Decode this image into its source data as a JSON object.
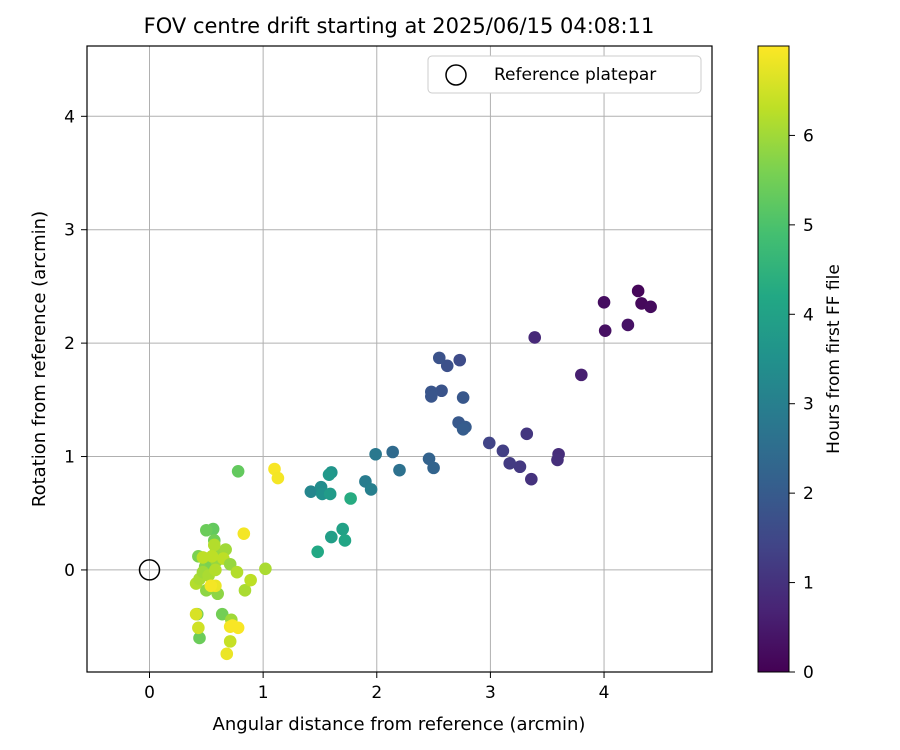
{
  "chart_data": {
    "type": "scatter",
    "title": "FOV centre drift starting at 2025/06/15 04:08:11",
    "xlabel": "Angular distance from reference (arcmin)",
    "ylabel": "Rotation from reference (arcmin)",
    "xlim": [
      -0.55,
      4.95
    ],
    "ylim": [
      -0.9,
      4.62
    ],
    "xticks": [
      0,
      1,
      2,
      3,
      4
    ],
    "yticks": [
      0,
      1,
      2,
      3,
      4
    ],
    "grid": true,
    "legend": {
      "placement": "top-right",
      "entries": [
        "Reference platepar"
      ]
    },
    "reference_point": {
      "x": 0,
      "y": 0
    },
    "colorbar": {
      "label": "Hours from first FF file",
      "range": [
        0,
        7
      ],
      "ticks": [
        0,
        1,
        2,
        3,
        4,
        5,
        6
      ],
      "colormap": "viridis"
    },
    "points": [
      {
        "x": 4.3,
        "y": 2.46,
        "h": 0.1
      },
      {
        "x": 4.33,
        "y": 2.35,
        "h": 0.15
      },
      {
        "x": 4.41,
        "y": 2.32,
        "h": 0.2
      },
      {
        "x": 4.0,
        "y": 2.36,
        "h": 0.25
      },
      {
        "x": 4.01,
        "y": 2.11,
        "h": 0.3
      },
      {
        "x": 4.21,
        "y": 2.16,
        "h": 0.35
      },
      {
        "x": 3.8,
        "y": 1.72,
        "h": 0.6
      },
      {
        "x": 3.39,
        "y": 2.05,
        "h": 0.8
      },
      {
        "x": 3.6,
        "y": 1.02,
        "h": 0.9
      },
      {
        "x": 3.59,
        "y": 0.97,
        "h": 0.95
      },
      {
        "x": 3.36,
        "y": 0.8,
        "h": 1.0
      },
      {
        "x": 3.32,
        "y": 1.2,
        "h": 1.1
      },
      {
        "x": 3.26,
        "y": 0.91,
        "h": 1.15
      },
      {
        "x": 3.17,
        "y": 0.94,
        "h": 1.2
      },
      {
        "x": 3.11,
        "y": 1.05,
        "h": 1.3
      },
      {
        "x": 2.99,
        "y": 1.12,
        "h": 1.4
      },
      {
        "x": 2.73,
        "y": 1.85,
        "h": 1.6
      },
      {
        "x": 2.62,
        "y": 1.8,
        "h": 1.7
      },
      {
        "x": 2.55,
        "y": 1.87,
        "h": 1.75
      },
      {
        "x": 2.57,
        "y": 1.58,
        "h": 1.8
      },
      {
        "x": 2.48,
        "y": 1.57,
        "h": 1.85
      },
      {
        "x": 2.48,
        "y": 1.53,
        "h": 1.85
      },
      {
        "x": 2.76,
        "y": 1.52,
        "h": 1.9
      },
      {
        "x": 2.72,
        "y": 1.3,
        "h": 1.95
      },
      {
        "x": 2.78,
        "y": 1.26,
        "h": 2.0
      },
      {
        "x": 2.76,
        "y": 1.24,
        "h": 2.05
      },
      {
        "x": 2.46,
        "y": 0.98,
        "h": 2.2
      },
      {
        "x": 2.5,
        "y": 0.9,
        "h": 2.25
      },
      {
        "x": 2.14,
        "y": 1.04,
        "h": 2.4
      },
      {
        "x": 2.2,
        "y": 0.88,
        "h": 2.6
      },
      {
        "x": 1.99,
        "y": 1.02,
        "h": 2.8
      },
      {
        "x": 1.9,
        "y": 0.78,
        "h": 2.9
      },
      {
        "x": 1.95,
        "y": 0.71,
        "h": 3.0
      },
      {
        "x": 1.42,
        "y": 0.69,
        "h": 3.2
      },
      {
        "x": 1.51,
        "y": 0.73,
        "h": 3.4
      },
      {
        "x": 1.52,
        "y": 0.67,
        "h": 3.5
      },
      {
        "x": 1.6,
        "y": 0.86,
        "h": 3.6
      },
      {
        "x": 1.58,
        "y": 0.84,
        "h": 3.7
      },
      {
        "x": 1.59,
        "y": 0.67,
        "h": 3.8
      },
      {
        "x": 1.6,
        "y": 0.29,
        "h": 3.9
      },
      {
        "x": 1.7,
        "y": 0.36,
        "h": 4.0
      },
      {
        "x": 1.72,
        "y": 0.26,
        "h": 4.1
      },
      {
        "x": 1.48,
        "y": 0.16,
        "h": 4.2
      },
      {
        "x": 1.77,
        "y": 0.63,
        "h": 4.3
      },
      {
        "x": 0.78,
        "y": 0.87,
        "h": 5.3
      },
      {
        "x": 0.56,
        "y": 0.36,
        "h": 5.3
      },
      {
        "x": 0.5,
        "y": 0.35,
        "h": 5.4
      },
      {
        "x": 0.57,
        "y": 0.26,
        "h": 5.5
      },
      {
        "x": 0.43,
        "y": 0.12,
        "h": 5.6
      },
      {
        "x": 0.49,
        "y": 0.03,
        "h": 5.7
      },
      {
        "x": 0.54,
        "y": 0.07,
        "h": 5.6
      },
      {
        "x": 0.5,
        "y": -0.18,
        "h": 5.8
      },
      {
        "x": 0.59,
        "y": 0.08,
        "h": 5.9
      },
      {
        "x": 0.58,
        "y": 0.15,
        "h": 5.9
      },
      {
        "x": 0.6,
        "y": -0.21,
        "h": 5.8
      },
      {
        "x": 0.44,
        "y": -0.6,
        "h": 5.4
      },
      {
        "x": 0.42,
        "y": -0.39,
        "h": 5.4
      },
      {
        "x": 0.64,
        "y": -0.39,
        "h": 5.5
      },
      {
        "x": 0.67,
        "y": 0.18,
        "h": 6.0
      },
      {
        "x": 0.57,
        "y": 0.22,
        "h": 6.2
      },
      {
        "x": 0.55,
        "y": 0.12,
        "h": 6.3
      },
      {
        "x": 0.47,
        "y": 0.11,
        "h": 6.3
      },
      {
        "x": 0.41,
        "y": -0.12,
        "h": 6.2
      },
      {
        "x": 0.44,
        "y": -0.08,
        "h": 6.1
      },
      {
        "x": 0.47,
        "y": -0.02,
        "h": 6.0
      },
      {
        "x": 0.52,
        "y": -0.05,
        "h": 6.1
      },
      {
        "x": 0.58,
        "y": 0.0,
        "h": 6.2
      },
      {
        "x": 0.65,
        "y": 0.1,
        "h": 6.3
      },
      {
        "x": 0.71,
        "y": 0.05,
        "h": 5.9
      },
      {
        "x": 0.77,
        "y": -0.02,
        "h": 6.2
      },
      {
        "x": 0.84,
        "y": -0.18,
        "h": 6.1
      },
      {
        "x": 0.89,
        "y": -0.09,
        "h": 6.3
      },
      {
        "x": 1.02,
        "y": 0.01,
        "h": 6.1
      },
      {
        "x": 0.72,
        "y": -0.44,
        "h": 6.0
      },
      {
        "x": 0.71,
        "y": -0.63,
        "h": 6.4
      },
      {
        "x": 0.43,
        "y": -0.51,
        "h": 6.5
      },
      {
        "x": 0.41,
        "y": -0.39,
        "h": 6.6
      },
      {
        "x": 0.58,
        "y": -0.14,
        "h": 6.8
      },
      {
        "x": 0.54,
        "y": -0.14,
        "h": 6.9
      },
      {
        "x": 0.71,
        "y": -0.5,
        "h": 6.9
      },
      {
        "x": 0.78,
        "y": -0.51,
        "h": 6.95
      },
      {
        "x": 0.68,
        "y": -0.74,
        "h": 6.8
      },
      {
        "x": 0.83,
        "y": 0.32,
        "h": 6.9
      },
      {
        "x": 1.1,
        "y": 0.89,
        "h": 6.95
      },
      {
        "x": 1.13,
        "y": 0.81,
        "h": 6.9
      },
      {
        "x": 0.73,
        "y": -0.49,
        "h": 6.95
      }
    ]
  }
}
